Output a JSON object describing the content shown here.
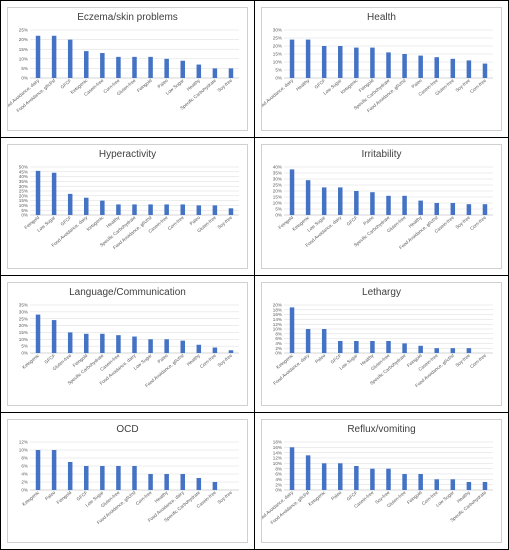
{
  "charts": [
    {
      "title": "Eczema/skin problems",
      "type": "bar",
      "color": "#4472c4",
      "ylim": [
        0,
        25
      ],
      "ticks": [
        "0%",
        "5%",
        "10%",
        "15%",
        "20%",
        "25%"
      ],
      "categories": [
        "Food Avoidance, dairy",
        "Food Avoidance, gf/cf/sf",
        "GFCF",
        "Ketogenic",
        "Casein-free",
        "Corn-free",
        "Gluten-free",
        "Feingold",
        "Paleo",
        "Low Sugar",
        "Healthy",
        "Specific Carbohydrate",
        "Soy-free"
      ],
      "values": [
        22,
        22,
        20,
        14,
        13,
        11,
        11,
        11,
        10,
        9,
        7,
        5,
        5
      ]
    },
    {
      "title": "Health",
      "type": "bar",
      "color": "#4472c4",
      "ylim": [
        0,
        30
      ],
      "ticks": [
        "0%",
        "5%",
        "10%",
        "15%",
        "20%",
        "25%",
        "30%"
      ],
      "categories": [
        "Food Avoidance, dairy",
        "Healthy",
        "GFCF",
        "Low Sugar",
        "Ketogenic",
        "Feingold",
        "Specific Carbohydrate",
        "Food Avoidance, gf/cf/sf",
        "Paleo",
        "Casein-free",
        "Gluten-free",
        "Soy-free",
        "Corn-free"
      ],
      "values": [
        24,
        24,
        20,
        20,
        19,
        19,
        16,
        15,
        14,
        13,
        12,
        11,
        9
      ]
    },
    {
      "title": "Hyperactivity",
      "type": "bar",
      "color": "#4472c4",
      "ylim": [
        0,
        50
      ],
      "ticks": [
        "0%",
        "5%",
        "10%",
        "15%",
        "20%",
        "25%",
        "30%",
        "35%",
        "40%",
        "45%",
        "50%"
      ],
      "categories": [
        "Feingold",
        "Low Sugar",
        "GFCF",
        "Food Avoidance, dairy",
        "Ketogenic",
        "Healthy",
        "Specific Carbohydrate",
        "Food Avoidance, gf/cf/sf",
        "Casein-free",
        "Corn-free",
        "Paleo",
        "Gluten-free",
        "Soy-free"
      ],
      "values": [
        46,
        44,
        22,
        18,
        15,
        11,
        11,
        11,
        11,
        11,
        10,
        10,
        7
      ]
    },
    {
      "title": "Irritability",
      "type": "bar",
      "color": "#4472c4",
      "ylim": [
        0,
        40
      ],
      "ticks": [
        "0%",
        "5%",
        "10%",
        "15%",
        "20%",
        "25%",
        "30%",
        "35%",
        "40%"
      ],
      "categories": [
        "Feingold",
        "Ketogenic",
        "Low Sugar",
        "Food Avoidance, dairy",
        "GFCF",
        "Paleo",
        "Specific Carbohydrate",
        "Gluten-free",
        "Healthy",
        "Food Avoidance, gf/cf/sf",
        "Casein-free",
        "Soy-free",
        "Corn-free"
      ],
      "values": [
        38,
        29,
        23,
        23,
        20,
        19,
        16,
        16,
        12,
        10,
        10,
        9,
        9
      ]
    },
    {
      "title": "Language/Communication",
      "type": "bar",
      "color": "#4472c4",
      "ylim": [
        0,
        35
      ],
      "ticks": [
        "0%",
        "5%",
        "10%",
        "15%",
        "20%",
        "25%",
        "30%",
        "35%"
      ],
      "categories": [
        "Ketogenic",
        "GFCF",
        "Gluten-free",
        "Feingold",
        "Specific Carbohydrate",
        "Casein-free",
        "Food Avoidance, dairy",
        "Low Sugar",
        "Paleo",
        "Food Avoidance, gf/cf/sf",
        "Healthy",
        "Corn-free",
        "Soy-free"
      ],
      "values": [
        28,
        24,
        15,
        14,
        14,
        13,
        12,
        10,
        10,
        9,
        6,
        4,
        2
      ]
    },
    {
      "title": "Lethargy",
      "type": "bar",
      "color": "#4472c4",
      "ylim": [
        0,
        20
      ],
      "ticks": [
        "0%",
        "2%",
        "4%",
        "6%",
        "8%",
        "10%",
        "12%",
        "14%",
        "16%",
        "18%",
        "20%"
      ],
      "categories": [
        "Ketogenic",
        "Food Avoidance, dairy",
        "Paleo",
        "GFCF",
        "Low Sugar",
        "Healthy",
        "Gluten-free",
        "Specific Carbohydrate",
        "Feingold",
        "Casein-free",
        "Food Avoidance, gf/cf/sf",
        "Soy-free",
        "Corn-free"
      ],
      "values": [
        19,
        10,
        10,
        5,
        5,
        5,
        5,
        4,
        3,
        2,
        2,
        2,
        0
      ]
    },
    {
      "title": "OCD",
      "type": "bar",
      "color": "#4472c4",
      "ylim": [
        0,
        12
      ],
      "ticks": [
        "0%",
        "2%",
        "4%",
        "6%",
        "8%",
        "10%",
        "12%"
      ],
      "categories": [
        "Ketogenic",
        "Paleo",
        "Feingold",
        "GFCF",
        "Low Sugar",
        "Gluten-free",
        "Food Avoidance, gf/cf/sf",
        "Corn-free",
        "Healthy",
        "Food Avoidance, dairy",
        "Specific Carbohydrate",
        "Casein-free",
        "Soy-free"
      ],
      "values": [
        10,
        10,
        7,
        6,
        6,
        6,
        6,
        4,
        4,
        4,
        3,
        2,
        0
      ]
    },
    {
      "title": "Reflux/vomiting",
      "type": "bar",
      "color": "#4472c4",
      "ylim": [
        0,
        18
      ],
      "ticks": [
        "0%",
        "2%",
        "4%",
        "6%",
        "8%",
        "10%",
        "12%",
        "14%",
        "16%",
        "18%"
      ],
      "categories": [
        "Food Avoidance, dairy",
        "Food Avoidance, gf/cf/sf",
        "Ketogenic",
        "Paleo",
        "GFCF",
        "Casein-free",
        "Soy-free",
        "Gluten-free",
        "Feingold",
        "Corn-free",
        "Low Sugar",
        "Healthy",
        "Specific Carbohydrate"
      ],
      "values": [
        16,
        13,
        10,
        10,
        9,
        8,
        8,
        6,
        6,
        4,
        4,
        3,
        3
      ]
    }
  ]
}
